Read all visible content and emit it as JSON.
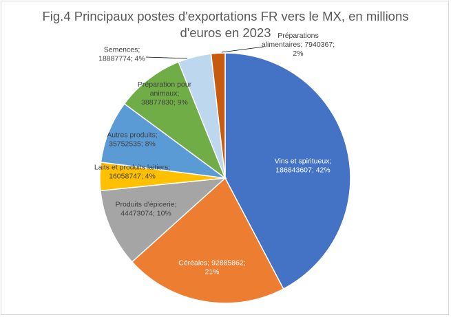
{
  "chart_data": {
    "type": "pie",
    "title_lines": [
      "Fig.4 Principaux postes d'exportations FR vers le MX, en millions",
      "d'euros en 2023"
    ],
    "slices": [
      {
        "label": "Vins et spiritueux",
        "value": 186843607,
        "percent": "42%",
        "color": "#4472c4",
        "label_text": [
          "Vins et spiritueux;",
          "186843607; 42%"
        ]
      },
      {
        "label": "Céréales",
        "value": 92885862,
        "percent": "21%",
        "color": "#ed7d31",
        "label_text": [
          "Céréales; 92885862;",
          "21%"
        ]
      },
      {
        "label": "Produits d'épicerie",
        "value": 44473074,
        "percent": "10%",
        "color": "#a5a5a5",
        "label_text": [
          "Produits d'épicerie;",
          "44473074; 10%"
        ]
      },
      {
        "label": "Laits et produits laitiers",
        "value": 16058747,
        "percent": "4%",
        "color": "#ffc000",
        "label_text": [
          "Laits et produits laitiers;",
          "16058747; 4%"
        ]
      },
      {
        "label": "Autres produits",
        "value": 35752535,
        "percent": "8%",
        "color": "#5b9bd5",
        "label_text": [
          "Autres produits;",
          "35752535; 8%"
        ]
      },
      {
        "label": "Préparation pour animaux",
        "value": 38877830,
        "percent": "9%",
        "color": "#70ad47",
        "label_text": [
          "Préparation pour",
          "animaux;",
          "38877830; 9%"
        ]
      },
      {
        "label": "Semences",
        "value": 18887774,
        "percent": "4%",
        "color": "#bdd7ee",
        "label_text": [
          "Semences;",
          "18887774; 4%"
        ]
      },
      {
        "label": "Préparations alimentaires",
        "value": 7940367,
        "percent": "2%",
        "color": "#c55a11",
        "label_text": [
          "Préparations",
          "alimentaires; 7940367;",
          "2%"
        ]
      }
    ]
  }
}
